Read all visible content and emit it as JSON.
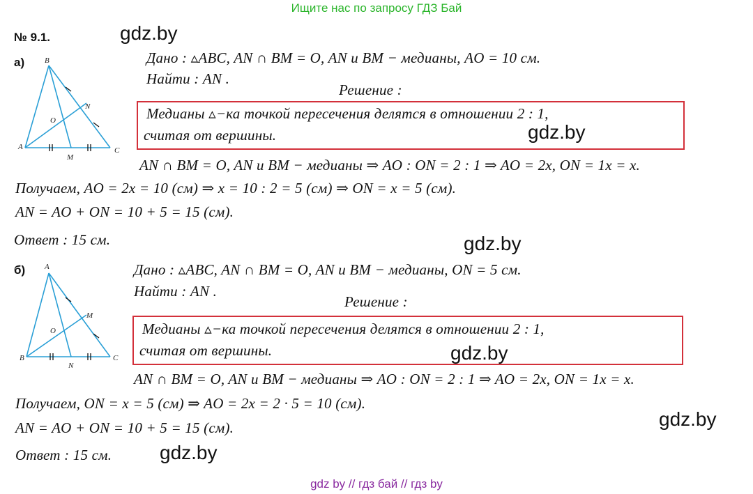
{
  "banner": "Ищите нас по запросу ГДЗ Бай",
  "problem_number": "№ 9.1.",
  "watermark": "gdz.by",
  "part_a": {
    "label": "а)",
    "given": "Дано :   ▵ABC,    AN ∩ BM = O,    AN и BM − медианы,    AO = 10    см.",
    "find": "Найти :   AN .",
    "solution_heading": "Решение :",
    "box_line1": "Медианы   ▵−ка   точкой   пересечения   делятся   в   отношении   2 : 1,",
    "box_line2": "считая    от    вершины.",
    "line1": "AN ∩ BM = O,  AN и BM − медианы  ⇒  AO : ON = 2 : 1  ⇒  AO = 2x,   ON = 1x = x.",
    "line2": "Получаем,    AO = 2x = 10   (см)   ⇒   x = 10 : 2 = 5   (см)   ⇒   ON = x = 5   (см).",
    "line3": "AN = AO + ON = 10 + 5 = 15    (см).",
    "answer": "Ответ :   15    см.",
    "figure_labels": {
      "B": "B",
      "A": "A",
      "C": "C",
      "N": "N",
      "O": "O",
      "M": "M"
    }
  },
  "part_b": {
    "label": "б)",
    "given": "Дано :   ▵ABC,    AN ∩ BM = O,    AN и BM − медианы,    ON = 5    см.",
    "find": "Найти :   AN .",
    "solution_heading": "Решение :",
    "box_line1": "Медианы   ▵−ка   точкой   пересечения   делятся   в   отношении   2 : 1,",
    "box_line2": "считая    от    вершины.",
    "line1": "AN ∩ BM = O, AN и BM − медианы  ⇒  AO : ON = 2 : 1   ⇒   AO = 2x,   ON = 1x = x.",
    "line2": "Получаем,   ON = x = 5   (см)   ⇒   AO = 2x = 2 · 5 = 10   (см).",
    "line3": "AN = AO + ON = 10 + 5 = 15    (см).",
    "answer": "Ответ :   15    см.",
    "figure_labels": {
      "A": "A",
      "B": "B",
      "C": "C",
      "M": "M",
      "O": "O",
      "N": "N"
    }
  },
  "footer": "gdz by  //  гдз бай  //  гдз by",
  "colors": {
    "banner": "#2bb52b",
    "box_border": "#d3303a",
    "figure_line": "#2a9fd6",
    "footer": "#8a2ba0"
  }
}
